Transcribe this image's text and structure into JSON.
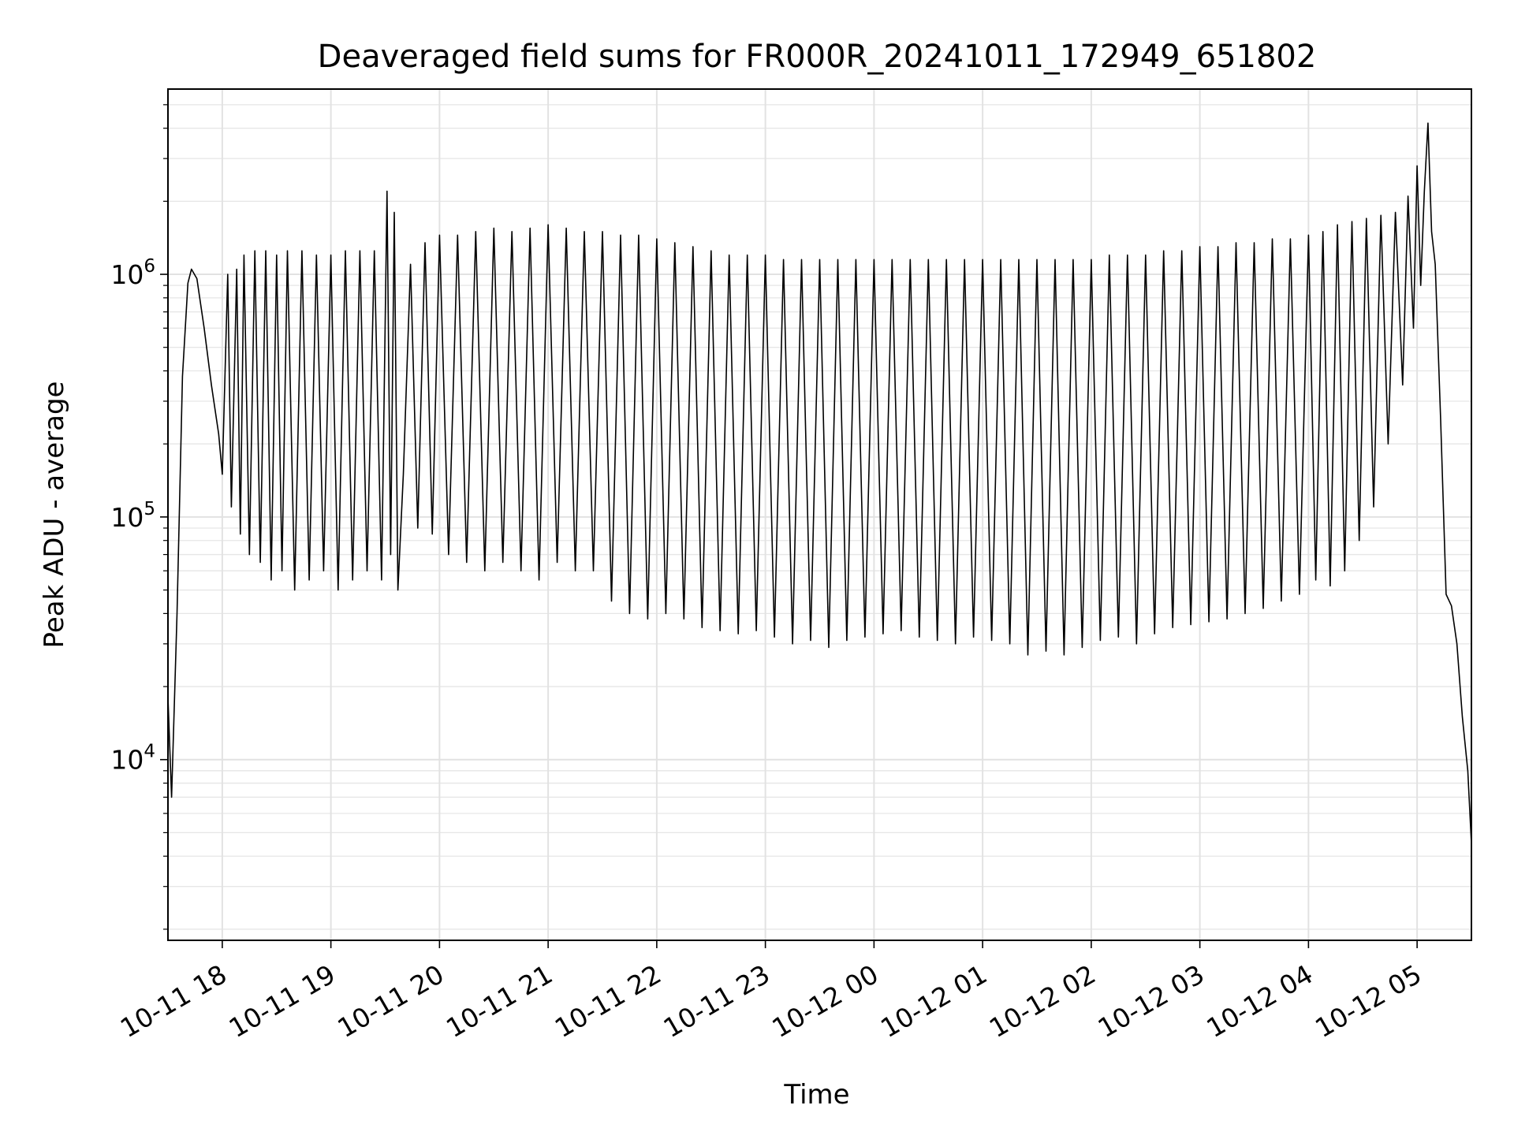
{
  "chart_data": {
    "type": "line",
    "title": "Deaveraged field sums for FR000R_20241011_172949_651802",
    "xlabel": "Time",
    "ylabel": "Peak ADU - average",
    "y_scale": "log",
    "ylim": [
      1800,
      5800000
    ],
    "xlim": [
      "2024-10-11 17:30",
      "2024-10-12 05:30"
    ],
    "x_ticks": [
      "2024-10-11 18:00",
      "2024-10-11 19:00",
      "2024-10-11 20:00",
      "2024-10-11 21:00",
      "2024-10-11 22:00",
      "2024-10-11 23:00",
      "2024-10-12 00:00",
      "2024-10-12 01:00",
      "2024-10-12 02:00",
      "2024-10-12 03:00",
      "2024-10-12 04:00",
      "2024-10-12 05:00"
    ],
    "x_tick_labels": [
      "10-11 18",
      "10-11 19",
      "10-11 20",
      "10-11 21",
      "10-11 22",
      "10-11 23",
      "10-12 00",
      "10-12 01",
      "10-12 02",
      "10-12 03",
      "10-12 04",
      "10-12 05"
    ],
    "y_ticks": [
      {
        "base": "10",
        "exp": "4",
        "value": 10000
      },
      {
        "base": "10",
        "exp": "5",
        "value": 100000
      },
      {
        "base": "10",
        "exp": "6",
        "value": 1000000
      }
    ],
    "grid": true,
    "line_color": "#000000",
    "series": [
      {
        "points": [
          [
            "2024-10-11 17:30",
            18000
          ],
          [
            "2024-10-11 17:32",
            7000
          ],
          [
            "2024-10-11 17:35",
            40000
          ],
          [
            "2024-10-11 17:38",
            380000
          ],
          [
            "2024-10-11 17:41",
            920000
          ],
          [
            "2024-10-11 17:43",
            1050000
          ],
          [
            "2024-10-11 17:46",
            960000
          ],
          [
            "2024-10-11 17:50",
            600000
          ],
          [
            "2024-10-11 17:54",
            350000
          ],
          [
            "2024-10-11 17:58",
            220000
          ],
          [
            "2024-10-11 18:00",
            150000
          ],
          [
            "2024-10-11 18:03",
            1000000
          ],
          [
            "2024-10-11 18:05",
            110000
          ],
          [
            "2024-10-11 18:08",
            1050000
          ],
          [
            "2024-10-11 18:10",
            85000
          ],
          [
            "2024-10-11 18:12",
            1200000
          ],
          [
            "2024-10-11 18:15",
            70000
          ],
          [
            "2024-10-11 18:18",
            1250000
          ],
          [
            "2024-10-11 18:21",
            65000
          ],
          [
            "2024-10-11 18:24",
            1250000
          ],
          [
            "2024-10-11 18:27",
            55000
          ],
          [
            "2024-10-11 18:30",
            1200000
          ],
          [
            "2024-10-11 18:33",
            60000
          ],
          [
            "2024-10-11 18:36",
            1250000
          ],
          [
            "2024-10-11 18:40",
            50000
          ],
          [
            "2024-10-11 18:44",
            1250000
          ],
          [
            "2024-10-11 18:48",
            55000
          ],
          [
            "2024-10-11 18:52",
            1200000
          ],
          [
            "2024-10-11 18:56",
            60000
          ],
          [
            "2024-10-11 19:00",
            1200000
          ],
          [
            "2024-10-11 19:04",
            50000
          ],
          [
            "2024-10-11 19:08",
            1250000
          ],
          [
            "2024-10-11 19:12",
            55000
          ],
          [
            "2024-10-11 19:16",
            1250000
          ],
          [
            "2024-10-11 19:20",
            60000
          ],
          [
            "2024-10-11 19:24",
            1250000
          ],
          [
            "2024-10-11 19:28",
            55000
          ],
          [
            "2024-10-11 19:31",
            2200000
          ],
          [
            "2024-10-11 19:33",
            70000
          ],
          [
            "2024-10-11 19:35",
            1800000
          ],
          [
            "2024-10-11 19:37",
            50000
          ],
          [
            "2024-10-11 19:40",
            150000
          ],
          [
            "2024-10-11 19:44",
            1100000
          ],
          [
            "2024-10-11 19:48",
            90000
          ],
          [
            "2024-10-11 19:52",
            1350000
          ],
          [
            "2024-10-11 19:56",
            85000
          ],
          [
            "2024-10-11 20:00",
            1450000
          ],
          [
            "2024-10-11 20:05",
            70000
          ],
          [
            "2024-10-11 20:10",
            1450000
          ],
          [
            "2024-10-11 20:15",
            65000
          ],
          [
            "2024-10-11 20:20",
            1500000
          ],
          [
            "2024-10-11 20:25",
            60000
          ],
          [
            "2024-10-11 20:30",
            1550000
          ],
          [
            "2024-10-11 20:35",
            65000
          ],
          [
            "2024-10-11 20:40",
            1500000
          ],
          [
            "2024-10-11 20:45",
            60000
          ],
          [
            "2024-10-11 20:50",
            1550000
          ],
          [
            "2024-10-11 20:55",
            55000
          ],
          [
            "2024-10-11 21:00",
            1600000
          ],
          [
            "2024-10-11 21:05",
            65000
          ],
          [
            "2024-10-11 21:10",
            1550000
          ],
          [
            "2024-10-11 21:15",
            60000
          ],
          [
            "2024-10-11 21:20",
            1500000
          ],
          [
            "2024-10-11 21:25",
            60000
          ],
          [
            "2024-10-11 21:30",
            1500000
          ],
          [
            "2024-10-11 21:35",
            45000
          ],
          [
            "2024-10-11 21:40",
            1450000
          ],
          [
            "2024-10-11 21:45",
            40000
          ],
          [
            "2024-10-11 21:50",
            1450000
          ],
          [
            "2024-10-11 21:55",
            38000
          ],
          [
            "2024-10-11 22:00",
            1400000
          ],
          [
            "2024-10-11 22:05",
            40000
          ],
          [
            "2024-10-11 22:10",
            1350000
          ],
          [
            "2024-10-11 22:15",
            38000
          ],
          [
            "2024-10-11 22:20",
            1300000
          ],
          [
            "2024-10-11 22:25",
            35000
          ],
          [
            "2024-10-11 22:30",
            1250000
          ],
          [
            "2024-10-11 22:35",
            34000
          ],
          [
            "2024-10-11 22:40",
            1200000
          ],
          [
            "2024-10-11 22:45",
            33000
          ],
          [
            "2024-10-11 22:50",
            1200000
          ],
          [
            "2024-10-11 22:55",
            34000
          ],
          [
            "2024-10-11 23:00",
            1200000
          ],
          [
            "2024-10-11 23:05",
            32000
          ],
          [
            "2024-10-11 23:10",
            1150000
          ],
          [
            "2024-10-11 23:15",
            30000
          ],
          [
            "2024-10-11 23:20",
            1150000
          ],
          [
            "2024-10-11 23:25",
            31000
          ],
          [
            "2024-10-11 23:30",
            1150000
          ],
          [
            "2024-10-11 23:35",
            29000
          ],
          [
            "2024-10-11 23:40",
            1150000
          ],
          [
            "2024-10-11 23:45",
            31000
          ],
          [
            "2024-10-11 23:50",
            1150000
          ],
          [
            "2024-10-11 23:55",
            32000
          ],
          [
            "2024-10-12 00:00",
            1150000
          ],
          [
            "2024-10-12 00:05",
            33000
          ],
          [
            "2024-10-12 00:10",
            1150000
          ],
          [
            "2024-10-12 00:15",
            34000
          ],
          [
            "2024-10-12 00:20",
            1150000
          ],
          [
            "2024-10-12 00:25",
            32000
          ],
          [
            "2024-10-12 00:30",
            1150000
          ],
          [
            "2024-10-12 00:35",
            31000
          ],
          [
            "2024-10-12 00:40",
            1150000
          ],
          [
            "2024-10-12 00:45",
            30000
          ],
          [
            "2024-10-12 00:50",
            1150000
          ],
          [
            "2024-10-12 00:55",
            32000
          ],
          [
            "2024-10-12 01:00",
            1150000
          ],
          [
            "2024-10-12 01:05",
            31000
          ],
          [
            "2024-10-12 01:10",
            1150000
          ],
          [
            "2024-10-12 01:15",
            30000
          ],
          [
            "2024-10-12 01:20",
            1150000
          ],
          [
            "2024-10-12 01:25",
            27000
          ],
          [
            "2024-10-12 01:30",
            1150000
          ],
          [
            "2024-10-12 01:35",
            28000
          ],
          [
            "2024-10-12 01:40",
            1150000
          ],
          [
            "2024-10-12 01:45",
            27000
          ],
          [
            "2024-10-12 01:50",
            1150000
          ],
          [
            "2024-10-12 01:55",
            29000
          ],
          [
            "2024-10-12 02:00",
            1150000
          ],
          [
            "2024-10-12 02:05",
            31000
          ],
          [
            "2024-10-12 02:10",
            1200000
          ],
          [
            "2024-10-12 02:15",
            32000
          ],
          [
            "2024-10-12 02:20",
            1200000
          ],
          [
            "2024-10-12 02:25",
            30000
          ],
          [
            "2024-10-12 02:30",
            1200000
          ],
          [
            "2024-10-12 02:35",
            33000
          ],
          [
            "2024-10-12 02:40",
            1250000
          ],
          [
            "2024-10-12 02:45",
            35000
          ],
          [
            "2024-10-12 02:50",
            1250000
          ],
          [
            "2024-10-12 02:55",
            36000
          ],
          [
            "2024-10-12 03:00",
            1300000
          ],
          [
            "2024-10-12 03:05",
            37000
          ],
          [
            "2024-10-12 03:10",
            1300000
          ],
          [
            "2024-10-12 03:15",
            38000
          ],
          [
            "2024-10-12 03:20",
            1350000
          ],
          [
            "2024-10-12 03:25",
            40000
          ],
          [
            "2024-10-12 03:30",
            1350000
          ],
          [
            "2024-10-12 03:35",
            42000
          ],
          [
            "2024-10-12 03:40",
            1400000
          ],
          [
            "2024-10-12 03:45",
            45000
          ],
          [
            "2024-10-12 03:50",
            1400000
          ],
          [
            "2024-10-12 03:55",
            48000
          ],
          [
            "2024-10-12 04:00",
            1450000
          ],
          [
            "2024-10-12 04:04",
            55000
          ],
          [
            "2024-10-12 04:08",
            1500000
          ],
          [
            "2024-10-12 04:12",
            52000
          ],
          [
            "2024-10-12 04:16",
            1600000
          ],
          [
            "2024-10-12 04:20",
            60000
          ],
          [
            "2024-10-12 04:24",
            1650000
          ],
          [
            "2024-10-12 04:28",
            80000
          ],
          [
            "2024-10-12 04:32",
            1700000
          ],
          [
            "2024-10-12 04:36",
            110000
          ],
          [
            "2024-10-12 04:40",
            1750000
          ],
          [
            "2024-10-12 04:44",
            200000
          ],
          [
            "2024-10-12 04:48",
            1800000
          ],
          [
            "2024-10-12 04:52",
            350000
          ],
          [
            "2024-10-12 04:55",
            2100000
          ],
          [
            "2024-10-12 04:58",
            600000
          ],
          [
            "2024-10-12 05:00",
            2800000
          ],
          [
            "2024-10-12 05:02",
            900000
          ],
          [
            "2024-10-12 05:04",
            2200000
          ],
          [
            "2024-10-12 05:06",
            4200000
          ],
          [
            "2024-10-12 05:08",
            1500000
          ],
          [
            "2024-10-12 05:10",
            1100000
          ],
          [
            "2024-10-12 05:13",
            250000
          ],
          [
            "2024-10-12 05:16",
            48000
          ],
          [
            "2024-10-12 05:19",
            43000
          ],
          [
            "2024-10-12 05:22",
            30000
          ],
          [
            "2024-10-12 05:25",
            15000
          ],
          [
            "2024-10-12 05:28",
            9000
          ],
          [
            "2024-10-12 05:30",
            4500
          ]
        ]
      }
    ]
  }
}
